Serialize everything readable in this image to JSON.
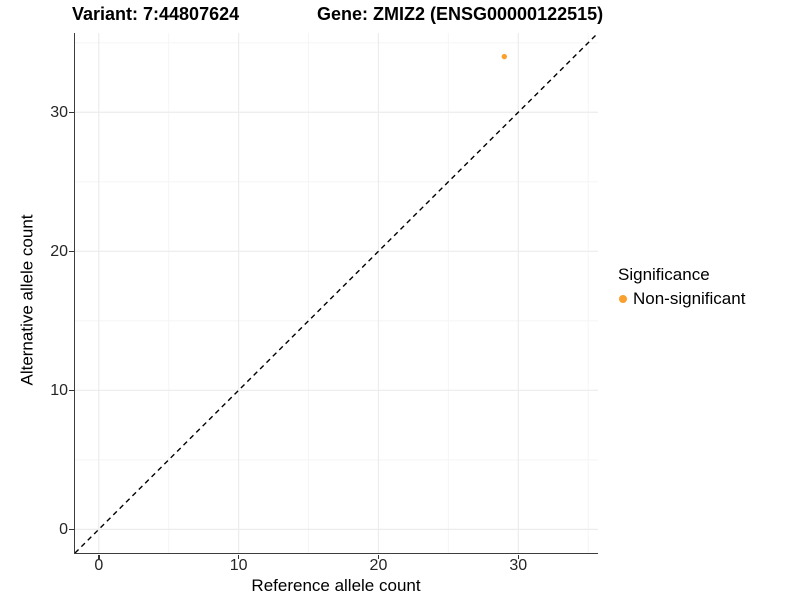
{
  "chart_data": {
    "type": "scatter",
    "titles": {
      "left": "Variant: 7:44807624",
      "right": "Gene: ZMIZ2 (ENSG00000122515)"
    },
    "xlabel": "Reference allele count",
    "ylabel": "Alternative allele count",
    "xlim": [
      -1.7,
      35.7
    ],
    "ylim": [
      -1.7,
      35.7
    ],
    "x_major_ticks": [
      0,
      10,
      20,
      30
    ],
    "x_minor_ticks": [
      5,
      15,
      25,
      35
    ],
    "y_major_ticks": [
      0,
      10,
      20,
      30
    ],
    "y_minor_ticks": [
      5,
      15,
      25,
      35
    ],
    "grid": {
      "major_color": "#ececec",
      "minor_color": "#f5f5f5"
    },
    "identity_line": {
      "slope": 1,
      "intercept": 0,
      "style": "dashed",
      "color": "#000000"
    },
    "series": [
      {
        "name": "Non-significant",
        "color": "#F9A02E",
        "points": [
          {
            "x": 29,
            "y": 34
          }
        ]
      }
    ],
    "legend": {
      "title": "Significance",
      "position": "right",
      "items": [
        {
          "label": "Non-significant",
          "color": "#F9A02E"
        }
      ]
    }
  }
}
